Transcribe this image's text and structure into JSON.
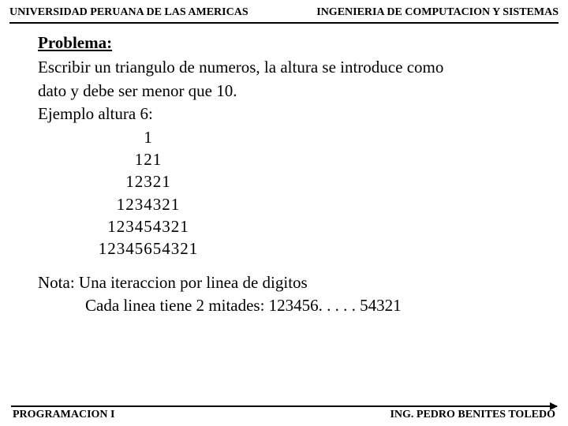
{
  "header": {
    "left": "UNIVERSIDAD PERUANA DE LAS AMERICAS",
    "right": "INGENIERIA DE COMPUTACION Y SISTEMAS"
  },
  "problem": {
    "title": "Problema:",
    "line1": "Escribir un triangulo de numeros, la altura se introduce como",
    "line2": "dato y debe ser menor que 10.",
    "line3": "Ejemplo altura 6:"
  },
  "triangle": {
    "r1": "1",
    "r2": "121",
    "r3": "12321",
    "r4": "1234321",
    "r5": "123454321",
    "r6": "12345654321"
  },
  "nota": {
    "line1": "Nota:   Una iteraccion por linea de digitos",
    "line2": "Cada linea tiene 2 mitades:  123456. . . . . 54321"
  },
  "footer": {
    "left": "PROGRAMACION  I",
    "right": "ING. PEDRO BENITES TOLEDO"
  }
}
